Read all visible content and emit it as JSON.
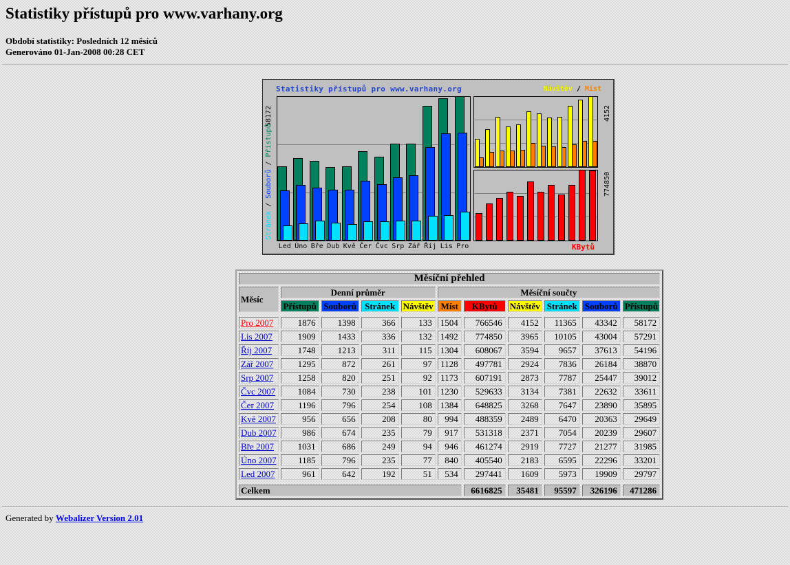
{
  "page": {
    "title": "Statistiky přístupů pro www.varhany.org",
    "period_line": "Období statistiky: Posledních 12 měsíců",
    "generated_line": "Generováno 01-Jan-2008 00:28 CET",
    "footer_prefix": "Generated by",
    "footer_link": "Webalizer Version 2.01"
  },
  "chart_data": {
    "type": "bar",
    "title": "Statistiky přístupů pro www.varhany.org",
    "legend": {
      "visits_label": "Návštěv",
      "separator": " / ",
      "sites_label": "Míst"
    },
    "legend_position": "top-right",
    "grid": "horizontal-thirds",
    "months": [
      "Led",
      "Úno",
      "Bře",
      "Dub",
      "Kvě",
      "Čer",
      "Čvc",
      "Srp",
      "Zář",
      "Říj",
      "Lis",
      "Pro"
    ],
    "left_axis_max_label": "58172",
    "axis_label_separator": " / ",
    "right_axis_top_max_label": "4152",
    "right_axis_bottom_max_label": "774850",
    "kbytes_label": "KBytů",
    "scales": {
      "left_max": 58172,
      "visits_max": 4152,
      "kbytes_max": 774850
    },
    "series": [
      {
        "name": "Přístupů",
        "color": "#00805C",
        "values": [
          29797,
          33201,
          31985,
          29607,
          29649,
          35895,
          33611,
          39012,
          38870,
          54196,
          57291,
          58172
        ]
      },
      {
        "name": "Souborů",
        "color": "#0040FF",
        "values": [
          19909,
          22296,
          21277,
          20239,
          20363,
          23890,
          22632,
          25447,
          26184,
          37613,
          43004,
          43342
        ]
      },
      {
        "name": "Stránek",
        "color": "#00E0FF",
        "values": [
          5973,
          6595,
          7727,
          7054,
          6470,
          7647,
          7381,
          7787,
          7836,
          9657,
          10105,
          11365
        ]
      },
      {
        "name": "Návštěv",
        "color": "#FFFF00",
        "values": [
          1609,
          2183,
          2919,
          2371,
          2489,
          3268,
          3134,
          2873,
          2924,
          3594,
          3965,
          4152
        ]
      },
      {
        "name": "Míst",
        "color": "#FF8000",
        "values": [
          534,
          840,
          946,
          917,
          994,
          1384,
          1230,
          1173,
          1128,
          1304,
          1492,
          1504
        ]
      },
      {
        "name": "KBytů",
        "color": "#FF0000",
        "values": [
          297441,
          405540,
          461274,
          531318,
          488359,
          648825,
          529633,
          607191,
          497781,
          608067,
          774850,
          766546
        ]
      }
    ]
  },
  "table": {
    "title": "Měsíční přehled",
    "month_col": "Měsíc",
    "group_headers": [
      "Denní průměr",
      "Měsíční součty"
    ],
    "default_link_color": "#0000CC",
    "columns": [
      {
        "label": "Přístupů",
        "color": "#00805C"
      },
      {
        "label": "Souborů",
        "color": "#0040FF"
      },
      {
        "label": "Stránek",
        "color": "#00E0FF"
      },
      {
        "label": "Návštěv",
        "color": "#FFFF00"
      },
      {
        "label": "Míst",
        "color": "#FF8000"
      },
      {
        "label": "KBytů",
        "color": "#FF0000"
      },
      {
        "label": "Návštěv",
        "color": "#FFFF00"
      },
      {
        "label": "Stránek",
        "color": "#00E0FF"
      },
      {
        "label": "Souborů",
        "color": "#0040FF"
      },
      {
        "label": "Přístupů",
        "color": "#00805C"
      }
    ],
    "rows": [
      {
        "month": "Pro 2007",
        "link_color": "#FF0000",
        "values": [
          1876,
          1398,
          366,
          133,
          1504,
          766546,
          4152,
          11365,
          43342,
          58172
        ]
      },
      {
        "month": "Lis 2007",
        "values": [
          1909,
          1433,
          336,
          132,
          1492,
          774850,
          3965,
          10105,
          43004,
          57291
        ]
      },
      {
        "month": "Říj 2007",
        "values": [
          1748,
          1213,
          311,
          115,
          1304,
          608067,
          3594,
          9657,
          37613,
          54196
        ]
      },
      {
        "month": "Zář 2007",
        "values": [
          1295,
          872,
          261,
          97,
          1128,
          497781,
          2924,
          7836,
          26184,
          38870
        ]
      },
      {
        "month": "Srp 2007",
        "values": [
          1258,
          820,
          251,
          92,
          1173,
          607191,
          2873,
          7787,
          25447,
          39012
        ]
      },
      {
        "month": "Čvc 2007",
        "values": [
          1084,
          730,
          238,
          101,
          1230,
          529633,
          3134,
          7381,
          22632,
          33611
        ]
      },
      {
        "month": "Čer 2007",
        "values": [
          1196,
          796,
          254,
          108,
          1384,
          648825,
          3268,
          7647,
          23890,
          35895
        ]
      },
      {
        "month": "Kvě 2007",
        "values": [
          956,
          656,
          208,
          80,
          994,
          488359,
          2489,
          6470,
          20363,
          29649
        ]
      },
      {
        "month": "Dub 2007",
        "values": [
          986,
          674,
          235,
          79,
          917,
          531318,
          2371,
          7054,
          20239,
          29607
        ]
      },
      {
        "month": "Bře 2007",
        "values": [
          1031,
          686,
          249,
          94,
          946,
          461274,
          2919,
          7727,
          21277,
          31985
        ]
      },
      {
        "month": "Úno 2007",
        "values": [
          1185,
          796,
          235,
          77,
          840,
          405540,
          2183,
          6595,
          22296,
          33201
        ]
      },
      {
        "month": "Led 2007",
        "values": [
          961,
          642,
          192,
          51,
          534,
          297441,
          1609,
          5973,
          19909,
          29797
        ]
      }
    ],
    "totals": {
      "label": "Celkem",
      "values": [
        6616825,
        35481,
        95597,
        326196,
        471286
      ]
    }
  }
}
